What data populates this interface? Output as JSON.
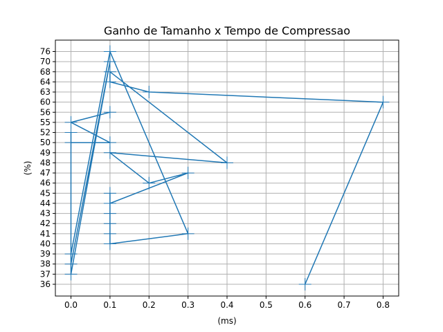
{
  "chart_data": {
    "type": "line",
    "title": "Ganho de Tamanho x Tempo de Compressao",
    "xlabel": "(ms)",
    "ylabel": "(%)",
    "xlim": [
      -0.04,
      0.84
    ],
    "x_ticks": [
      0.0,
      0.1,
      0.2,
      0.3,
      0.4,
      0.5,
      0.6,
      0.7,
      0.8
    ],
    "x_tick_labels": [
      "0.0",
      "0.1",
      "0.2",
      "0.3",
      "0.4",
      "0.5",
      "0.6",
      "0.7",
      "0.8"
    ],
    "y_categories": [
      "36",
      "37",
      "38",
      "39",
      "40",
      "41",
      "42",
      "43",
      "44",
      "45",
      "46",
      "47",
      "48",
      "49",
      "50",
      "52",
      "55",
      "56",
      "60",
      "63",
      "64",
      "68",
      "70",
      "76"
    ],
    "grid": true,
    "marker": "+",
    "color": "#1f77b4",
    "series": [
      {
        "x": [
          0.6,
          0.8,
          0.2,
          0.1,
          0.1,
          0.4,
          0.1,
          0.2,
          0.3,
          0.1,
          0.1,
          0.1,
          0.1,
          0.1,
          0.1,
          0.3,
          0.1,
          0.0,
          0.0,
          0.1,
          0.0,
          0.0,
          0.0,
          0.1,
          0.0,
          0.1
        ],
        "y": [
          "36",
          "60",
          "63",
          "64",
          "68",
          "48",
          "49",
          "46",
          "47",
          "44",
          "43",
          "42",
          "45",
          "41",
          "40",
          "41",
          "76",
          "39",
          "38",
          "70",
          "37",
          "52",
          "50",
          "50",
          "55",
          "56"
        ]
      }
    ]
  }
}
